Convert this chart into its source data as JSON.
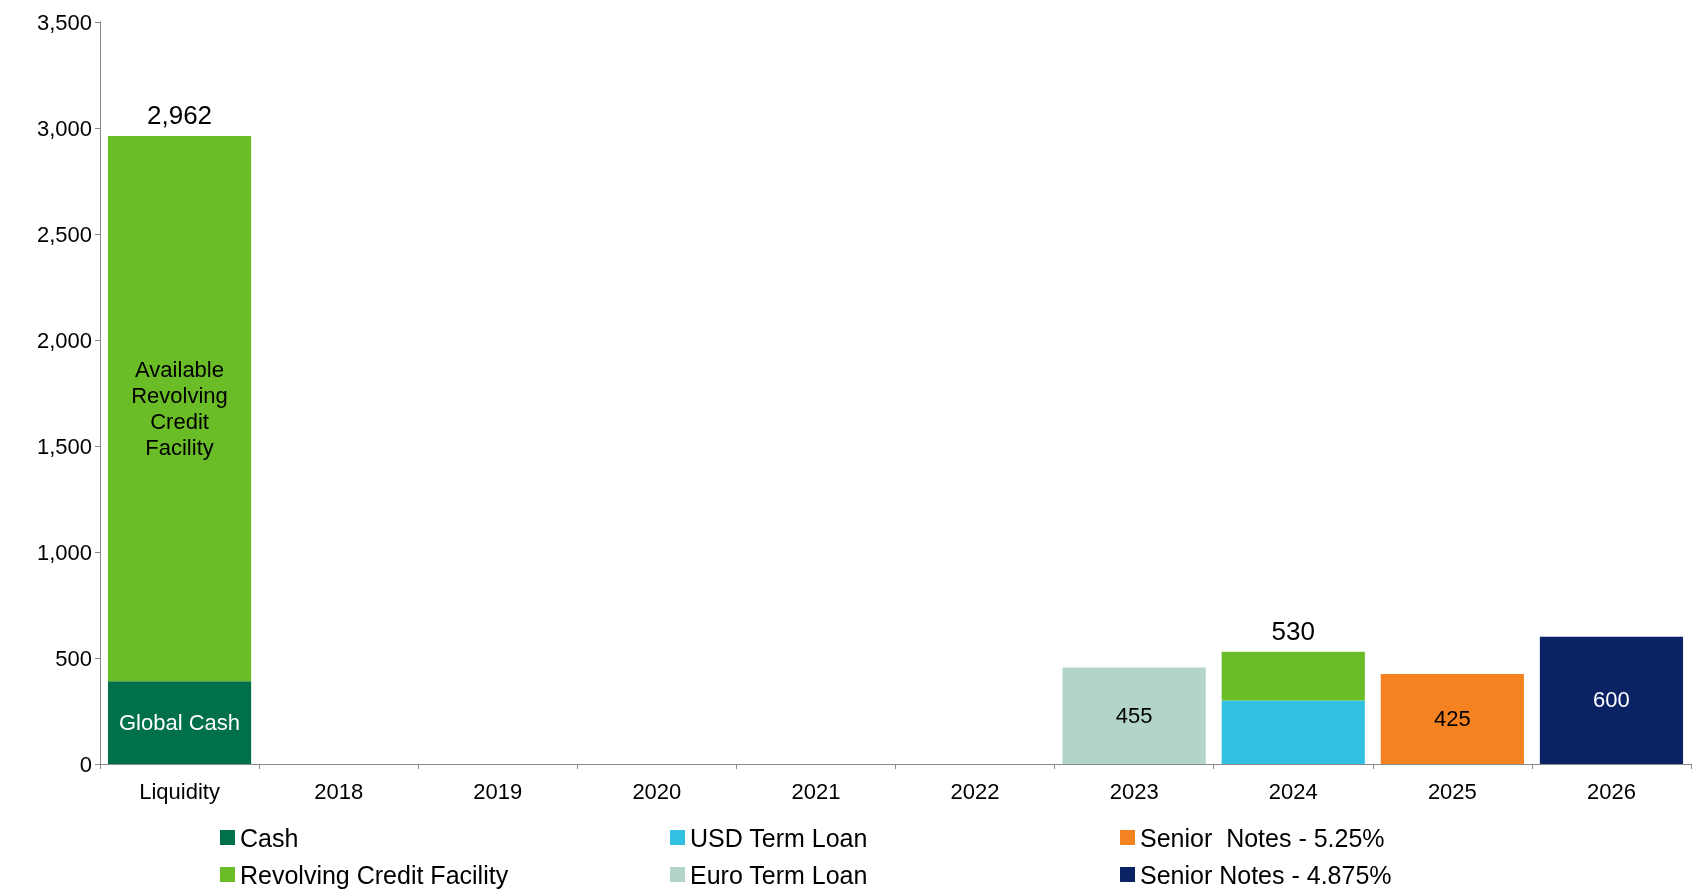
{
  "chart_data": {
    "type": "bar",
    "stacked": true,
    "categories": [
      "Liquidity",
      "2018",
      "2019",
      "2020",
      "2021",
      "2022",
      "2023",
      "2024",
      "2025",
      "2026"
    ],
    "series": [
      {
        "name": "Cash",
        "color": "#00704a",
        "values": [
          390,
          null,
          null,
          null,
          null,
          null,
          null,
          null,
          null,
          null
        ],
        "value_labels": [
          "Global Cash",
          null,
          null,
          null,
          null,
          null,
          null,
          null,
          null,
          null
        ]
      },
      {
        "name": "USD Term Loan",
        "color": "#33c1e3",
        "values": [
          null,
          null,
          null,
          null,
          null,
          null,
          null,
          300,
          null,
          null
        ]
      },
      {
        "name": "Senior  Notes - 5.25%",
        "color": "#f58220",
        "values": [
          null,
          null,
          null,
          null,
          null,
          null,
          null,
          null,
          425,
          null
        ],
        "value_labels": [
          null,
          null,
          null,
          null,
          null,
          null,
          null,
          null,
          "425",
          null
        ]
      },
      {
        "name": "Revolving Credit Facility",
        "color": "#6bbd28",
        "values": [
          2572,
          null,
          null,
          null,
          null,
          null,
          null,
          230,
          null,
          null
        ],
        "value_labels": [
          "Available Revolving Credit Facility",
          null,
          null,
          null,
          null,
          null,
          null,
          null,
          null,
          null
        ]
      },
      {
        "name": "Euro Term Loan",
        "color": "#b3d4cb",
        "values": [
          null,
          null,
          null,
          null,
          null,
          null,
          455,
          null,
          null,
          null
        ],
        "value_labels": [
          null,
          null,
          null,
          null,
          null,
          null,
          "455",
          null,
          null,
          null
        ]
      },
      {
        "name": "Senior Notes - 4.875%",
        "color": "#0b2265",
        "values": [
          null,
          null,
          null,
          null,
          null,
          null,
          null,
          null,
          null,
          600
        ],
        "value_labels": [
          null,
          null,
          null,
          null,
          null,
          null,
          null,
          null,
          null,
          "600"
        ]
      }
    ],
    "totals": [
      "2,962",
      null,
      null,
      null,
      null,
      null,
      null,
      "530",
      null,
      null
    ],
    "ylim": [
      0,
      3500
    ],
    "yticks": [
      0,
      500,
      {
        "value": 1000,
        "label": "1,000"
      },
      {
        "value": 1500,
        "label": "1,500"
      },
      {
        "value": 2000,
        "label": "2,000"
      },
      {
        "value": 2500,
        "label": "2,500"
      },
      {
        "value": 3000,
        "label": "3,000"
      },
      {
        "value": 3500,
        "label": "3,500"
      }
    ],
    "grid": false,
    "legend": "bottom"
  }
}
